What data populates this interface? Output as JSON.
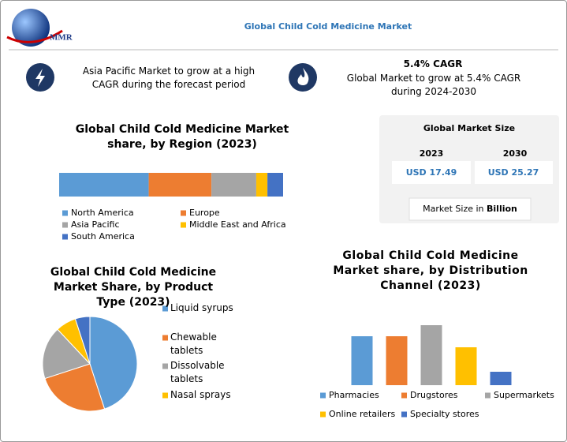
{
  "header": {
    "logo": "MMR",
    "title": "Global Child Cold Medicine Market"
  },
  "highlights": [
    {
      "text": "Asia Pacific Market to grow at a high CAGR during the forecast period"
    },
    {
      "title": "5.4% CAGR",
      "text": "Global Market to grow at 5.4% CAGR during 2024-2030"
    }
  ],
  "market_size": {
    "title": "Global Market Size",
    "years": [
      "2023",
      "2030"
    ],
    "values": [
      "USD 17.49",
      "USD 25.27"
    ],
    "note": "Market Size in",
    "unit": "Billion"
  },
  "chart_data": [
    {
      "type": "stacked-bar",
      "title": "Global Child Cold Medicine Market share, by Region (2023)",
      "xlim": [
        0,
        100
      ],
      "series": [
        {
          "name": "North America",
          "color": "#5b9bd5",
          "values": [
            40
          ]
        },
        {
          "name": "Europe",
          "color": "#ed7d31",
          "values": [
            28
          ]
        },
        {
          "name": "Asia Pacific",
          "color": "#a5a5a5",
          "values": [
            20
          ]
        },
        {
          "name": "Middle East and Africa",
          "color": "#ffc000",
          "values": [
            5
          ]
        },
        {
          "name": "South America",
          "color": "#4472c4",
          "values": [
            7
          ]
        }
      ]
    },
    {
      "type": "pie",
      "title": "Global Child Cold Medicine Market Share, by Product Type (2023)",
      "categories": [
        "Liquid syrups",
        "Chewable tablets",
        "Dissolvable tablets",
        "Nasal sprays",
        null
      ],
      "values": [
        45,
        25,
        18,
        7,
        5
      ],
      "colors": [
        "#5b9bd5",
        "#ed7d31",
        "#a5a5a5",
        "#ffc000",
        "#4472c4"
      ]
    },
    {
      "type": "bar",
      "title": "Global Child Cold Medicine Market share, by Distribution Channel (2023)",
      "categories": [
        "Pharmacies",
        "Drugstores",
        "Supermarkets",
        "Online retailers",
        "Specialty stores"
      ],
      "values": [
        62,
        62,
        76,
        48,
        17
      ],
      "colors": [
        "#5b9bd5",
        "#ed7d31",
        "#a5a5a5",
        "#ffc000",
        "#4472c4"
      ],
      "ylim": [
        0,
        80
      ]
    }
  ]
}
